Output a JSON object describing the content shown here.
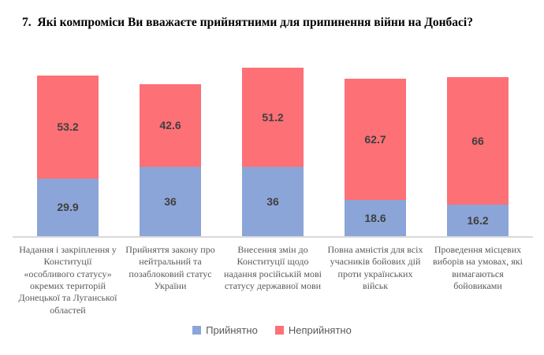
{
  "title": "7.  Які компроміси Ви вважаєте прийнятними для припинення війни на Донбасі?",
  "chart_data": {
    "type": "bar",
    "subtype": "stacked",
    "title": "7.  Які компроміси Ви вважаєте прийнятними для припинення війни на Донбасі?",
    "categories": [
      "Надання і закріплення у Конституції «особливого статусу» окремих територій Донецької та Луганської областей",
      "Прийняття закону про нейтральний та позаблоковий статус України",
      "Внесення змін до Конституції щодо надання російській мові статусу державної мови",
      "Повна амністія для всіх учасників бойових дій проти українських військ",
      "Проведення місцевих виборів на умовах, які вимагаються бойовиками"
    ],
    "series": [
      {
        "name": "Прийнятно",
        "color": "#8CA5D8",
        "values": [
          29.9,
          36,
          36,
          18.6,
          16.2
        ]
      },
      {
        "name": "Неприйнятно",
        "color": "#FC7076",
        "values": [
          53.2,
          42.6,
          51.2,
          62.7,
          66
        ]
      }
    ],
    "value_labels_visible": true,
    "legend_position": "bottom",
    "xlabel": "",
    "ylabel": "",
    "ylim": [
      0,
      90
    ],
    "grid": false
  },
  "colors": {
    "background": "#FFFFFF",
    "title_text": "#000000",
    "value_label": "#3F3F3F",
    "category_label": "#595959",
    "legend_label": "#595959",
    "axis_line": "#D9D9D9",
    "series_acceptable": "#8CA5D8",
    "series_unacceptable": "#FC7076"
  }
}
